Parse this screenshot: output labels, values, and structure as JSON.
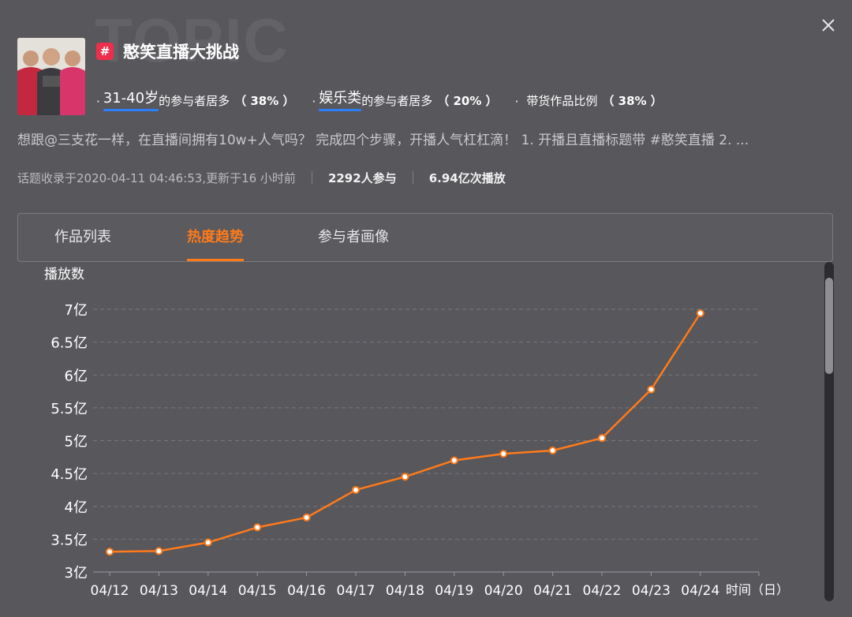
{
  "watermark": "TOPIC",
  "topic": {
    "title": "憨笑直播大挑战",
    "hash_symbol": "#",
    "hash_color": "#ee2e4a"
  },
  "stats": [
    {
      "highlight": "31-40岁",
      "text": "的参与者居多",
      "percent": "（ 38% ）"
    },
    {
      "highlight": "娱乐类",
      "text": "的参与者居多",
      "percent": "（ 20% ）"
    },
    {
      "highlight": "",
      "text": "带货作品比例",
      "percent": "（ 38% ）"
    }
  ],
  "description": "想跟@三支花一样，在直播间拥有10w+人气吗？ 完成四个步骤，开播人气杠杠滴！ 1. 开播且直播标题带 #憨笑直播 2. ...",
  "meta": {
    "collected": "话题收录于2020-04-11 04:46:53,更新于16 小时前",
    "participants": "2292人参与",
    "plays": "6.94亿次播放"
  },
  "tabs": [
    {
      "label": "作品列表",
      "active": false
    },
    {
      "label": "热度趋势",
      "active": true
    },
    {
      "label": "参与者画像",
      "active": false
    }
  ],
  "icons": {
    "close": "close-icon",
    "topic": "hash-icon",
    "avatar": "avatar-photo"
  },
  "colors": {
    "accent": "#ff7a1a",
    "underline": "#2d7ff9",
    "background": "#57575c"
  },
  "chart_data": {
    "type": "line",
    "ylabel": "播放数",
    "xlabel": "时间（日）",
    "categories": [
      "04/12",
      "04/13",
      "04/14",
      "04/15",
      "04/16",
      "04/17",
      "04/18",
      "04/19",
      "04/20",
      "04/21",
      "04/22",
      "04/23",
      "04/24"
    ],
    "series": [
      {
        "values": [
          3.31,
          3.32,
          3.45,
          3.68,
          3.83,
          4.25,
          4.45,
          4.7,
          4.8,
          4.85,
          5.04,
          5.78,
          6.94
        ]
      }
    ],
    "ylim": [
      3,
      7
    ],
    "yticks": [
      {
        "value": 3,
        "label": "3亿"
      },
      {
        "value": 3.5,
        "label": "3.5亿"
      },
      {
        "value": 4,
        "label": "4亿"
      },
      {
        "value": 4.5,
        "label": "4.5亿"
      },
      {
        "value": 5,
        "label": "5亿"
      },
      {
        "value": 5.5,
        "label": "5.5亿"
      },
      {
        "value": 6,
        "label": "6亿"
      },
      {
        "value": 6.5,
        "label": "6.5亿"
      },
      {
        "value": 7,
        "label": "7亿"
      }
    ],
    "grid": true,
    "line_color": "#ff7a1a"
  }
}
